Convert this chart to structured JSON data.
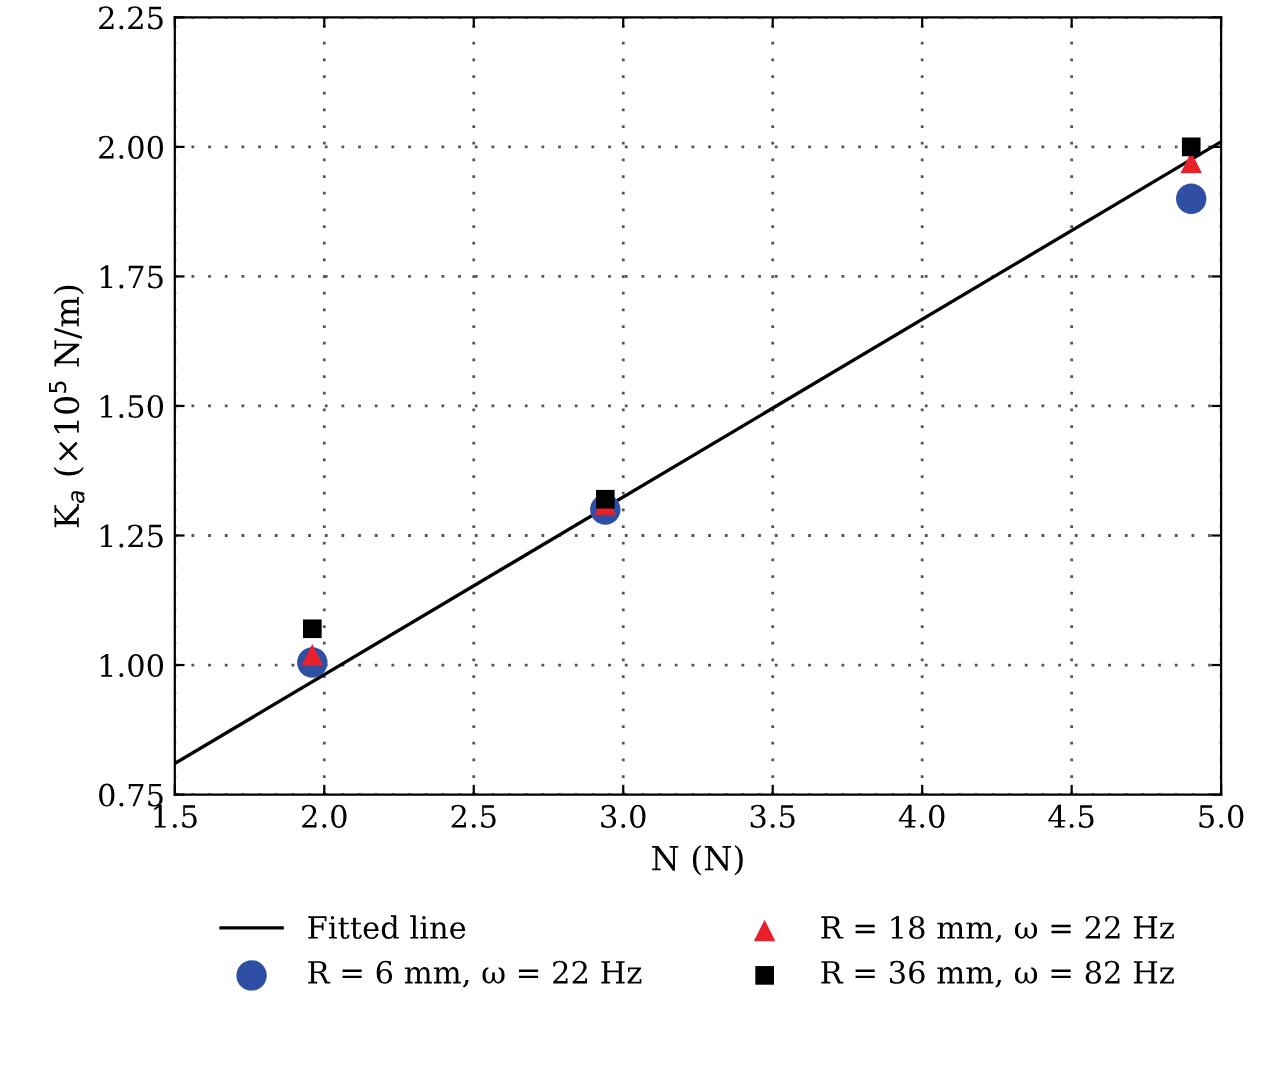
{
  "chart_data": {
    "type": "scatter",
    "xlabel": "N (N)",
    "ylabel": "K$_{a}$ (×10$^{5}$ N/m)",
    "xlim": [
      1.5,
      5.0
    ],
    "ylim": [
      0.75,
      2.25
    ],
    "xticks": [
      1.5,
      {
        "value": 2.0,
        "label": "2.0"
      },
      2.5,
      {
        "value": 3.0,
        "label": "3.0"
      },
      3.5,
      {
        "value": 4.0,
        "label": "4.0"
      },
      4.5,
      {
        "value": 5.0,
        "label": "5.0"
      }
    ],
    "yticks": [
      0.75,
      {
        "value": 1.0,
        "label": "1.00"
      },
      1.25,
      {
        "value": 1.5,
        "label": "1.50"
      },
      1.75,
      {
        "value": 2.0,
        "label": "2.00"
      },
      2.25
    ],
    "grid": true,
    "legend": "bottom",
    "series": [
      {
        "name": "Fitted line",
        "type": "line",
        "color": "#000000",
        "x": [
          1.5,
          5.0
        ],
        "values": [
          0.81,
          2.01
        ],
        "marker": "none",
        "line_style": "solid"
      },
      {
        "name": "R = 6 mm, ω = 22 Hz",
        "color": "#2e4fa3",
        "marker": "circle",
        "x": [
          1.96,
          2.94,
          4.9
        ],
        "values": [
          1.005,
          1.3,
          1.9
        ]
      },
      {
        "name": "R = 18 mm, ω = 22 Hz",
        "color": "#e8202a",
        "marker": "triangle",
        "x": [
          1.96,
          2.94,
          4.9
        ],
        "values": [
          1.02,
          1.31,
          1.97
        ]
      },
      {
        "name": "R = 36 mm, ω = 82 Hz",
        "color": "#000000",
        "marker": "square",
        "x": [
          1.96,
          2.94,
          4.9
        ],
        "values": [
          1.07,
          1.32,
          2.0
        ]
      }
    ]
  }
}
